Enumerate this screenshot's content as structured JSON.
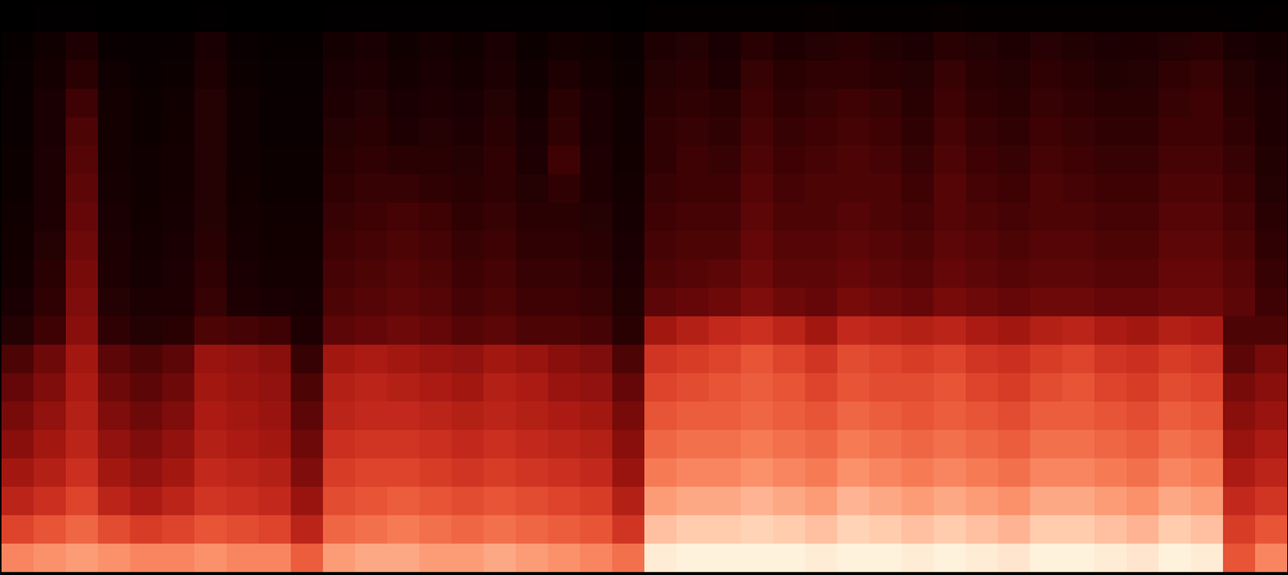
{
  "chart_data": {
    "type": "heatmap",
    "tick_labels": false,
    "cells": [
      [
        0.03,
        0.04,
        0.04,
        0.03,
        0.03,
        0.03,
        0.04,
        0.03,
        0.03,
        0.03,
        0.04,
        0.04,
        0.04,
        0.04,
        0.04,
        0.04,
        0.04,
        0.04,
        0.04,
        0.03,
        0.05,
        0.05,
        0.05,
        0.05,
        0.05,
        0.06,
        0.05,
        0.05,
        0.05,
        0.06,
        0.05,
        0.05,
        0.05,
        0.05,
        0.05,
        0.05,
        0.05,
        0.05,
        0.04,
        0.05
      ],
      [
        0.06,
        0.1,
        0.16,
        0.08,
        0.07,
        0.08,
        0.14,
        0.08,
        0.06,
        0.06,
        0.12,
        0.14,
        0.1,
        0.13,
        0.1,
        0.14,
        0.09,
        0.12,
        0.1,
        0.08,
        0.16,
        0.18,
        0.14,
        0.2,
        0.16,
        0.18,
        0.2,
        0.17,
        0.15,
        0.2,
        0.18,
        0.16,
        0.19,
        0.17,
        0.15,
        0.16,
        0.18,
        0.2,
        0.14,
        0.12
      ],
      [
        0.07,
        0.12,
        0.2,
        0.1,
        0.08,
        0.09,
        0.16,
        0.09,
        0.07,
        0.07,
        0.14,
        0.16,
        0.12,
        0.14,
        0.12,
        0.15,
        0.1,
        0.16,
        0.12,
        0.09,
        0.18,
        0.2,
        0.16,
        0.24,
        0.2,
        0.22,
        0.22,
        0.2,
        0.18,
        0.24,
        0.2,
        0.18,
        0.22,
        0.2,
        0.17,
        0.18,
        0.22,
        0.24,
        0.18,
        0.14
      ],
      [
        0.08,
        0.14,
        0.26,
        0.12,
        0.09,
        0.1,
        0.18,
        0.1,
        0.08,
        0.08,
        0.16,
        0.18,
        0.14,
        0.16,
        0.14,
        0.18,
        0.12,
        0.2,
        0.14,
        0.1,
        0.2,
        0.22,
        0.2,
        0.26,
        0.22,
        0.24,
        0.26,
        0.24,
        0.2,
        0.26,
        0.22,
        0.2,
        0.24,
        0.22,
        0.2,
        0.2,
        0.24,
        0.26,
        0.2,
        0.16
      ],
      [
        0.08,
        0.14,
        0.3,
        0.12,
        0.09,
        0.11,
        0.18,
        0.1,
        0.08,
        0.08,
        0.18,
        0.2,
        0.16,
        0.18,
        0.16,
        0.2,
        0.14,
        0.22,
        0.14,
        0.1,
        0.22,
        0.24,
        0.22,
        0.28,
        0.24,
        0.26,
        0.28,
        0.26,
        0.22,
        0.28,
        0.24,
        0.22,
        0.26,
        0.24,
        0.22,
        0.22,
        0.26,
        0.26,
        0.22,
        0.16
      ],
      [
        0.09,
        0.15,
        0.32,
        0.12,
        0.1,
        0.12,
        0.18,
        0.1,
        0.09,
        0.09,
        0.2,
        0.22,
        0.2,
        0.2,
        0.18,
        0.22,
        0.16,
        0.26,
        0.16,
        0.11,
        0.22,
        0.26,
        0.24,
        0.3,
        0.26,
        0.28,
        0.3,
        0.28,
        0.24,
        0.3,
        0.26,
        0.24,
        0.28,
        0.26,
        0.24,
        0.24,
        0.28,
        0.28,
        0.24,
        0.17
      ],
      [
        0.09,
        0.15,
        0.34,
        0.13,
        0.1,
        0.12,
        0.18,
        0.11,
        0.09,
        0.09,
        0.22,
        0.24,
        0.24,
        0.22,
        0.2,
        0.22,
        0.18,
        0.22,
        0.16,
        0.12,
        0.24,
        0.26,
        0.26,
        0.32,
        0.28,
        0.3,
        0.3,
        0.3,
        0.26,
        0.32,
        0.28,
        0.26,
        0.3,
        0.28,
        0.26,
        0.26,
        0.3,
        0.3,
        0.26,
        0.18
      ],
      [
        0.1,
        0.16,
        0.36,
        0.14,
        0.11,
        0.13,
        0.18,
        0.12,
        0.1,
        0.1,
        0.24,
        0.26,
        0.28,
        0.26,
        0.22,
        0.24,
        0.2,
        0.2,
        0.18,
        0.13,
        0.26,
        0.28,
        0.28,
        0.34,
        0.3,
        0.3,
        0.32,
        0.3,
        0.28,
        0.32,
        0.3,
        0.28,
        0.3,
        0.3,
        0.28,
        0.28,
        0.32,
        0.32,
        0.28,
        0.2
      ],
      [
        0.11,
        0.18,
        0.38,
        0.15,
        0.12,
        0.14,
        0.2,
        0.13,
        0.11,
        0.11,
        0.26,
        0.28,
        0.3,
        0.28,
        0.24,
        0.26,
        0.22,
        0.22,
        0.2,
        0.14,
        0.28,
        0.3,
        0.3,
        0.36,
        0.32,
        0.32,
        0.34,
        0.32,
        0.3,
        0.34,
        0.32,
        0.3,
        0.32,
        0.32,
        0.3,
        0.3,
        0.34,
        0.34,
        0.3,
        0.22
      ],
      [
        0.12,
        0.2,
        0.4,
        0.16,
        0.13,
        0.15,
        0.22,
        0.14,
        0.12,
        0.12,
        0.28,
        0.3,
        0.32,
        0.3,
        0.26,
        0.28,
        0.24,
        0.24,
        0.22,
        0.15,
        0.3,
        0.32,
        0.34,
        0.38,
        0.34,
        0.34,
        0.36,
        0.34,
        0.32,
        0.36,
        0.34,
        0.32,
        0.34,
        0.34,
        0.32,
        0.32,
        0.36,
        0.36,
        0.32,
        0.24
      ],
      [
        0.14,
        0.22,
        0.42,
        0.18,
        0.15,
        0.16,
        0.24,
        0.16,
        0.14,
        0.13,
        0.3,
        0.32,
        0.34,
        0.32,
        0.28,
        0.3,
        0.26,
        0.26,
        0.24,
        0.17,
        0.34,
        0.36,
        0.38,
        0.42,
        0.38,
        0.36,
        0.4,
        0.38,
        0.36,
        0.4,
        0.38,
        0.36,
        0.38,
        0.38,
        0.36,
        0.36,
        0.38,
        0.38,
        0.34,
        0.26
      ],
      [
        0.18,
        0.26,
        0.44,
        0.22,
        0.18,
        0.2,
        0.3,
        0.28,
        0.26,
        0.16,
        0.34,
        0.36,
        0.38,
        0.36,
        0.32,
        0.34,
        0.3,
        0.3,
        0.28,
        0.2,
        0.5,
        0.54,
        0.58,
        0.6,
        0.56,
        0.5,
        0.58,
        0.56,
        0.54,
        0.56,
        0.52,
        0.5,
        0.54,
        0.56,
        0.52,
        0.5,
        0.54,
        0.52,
        0.3,
        0.3
      ],
      [
        0.3,
        0.38,
        0.5,
        0.34,
        0.3,
        0.34,
        0.48,
        0.46,
        0.44,
        0.24,
        0.5,
        0.52,
        0.5,
        0.48,
        0.46,
        0.5,
        0.48,
        0.44,
        0.42,
        0.3,
        0.62,
        0.64,
        0.66,
        0.7,
        0.66,
        0.62,
        0.68,
        0.66,
        0.64,
        0.66,
        0.62,
        0.6,
        0.64,
        0.66,
        0.62,
        0.6,
        0.64,
        0.62,
        0.34,
        0.4
      ],
      [
        0.36,
        0.42,
        0.52,
        0.38,
        0.34,
        0.38,
        0.5,
        0.48,
        0.46,
        0.3,
        0.54,
        0.56,
        0.54,
        0.52,
        0.5,
        0.54,
        0.52,
        0.48,
        0.46,
        0.36,
        0.66,
        0.68,
        0.7,
        0.72,
        0.7,
        0.66,
        0.7,
        0.68,
        0.68,
        0.7,
        0.66,
        0.64,
        0.68,
        0.7,
        0.66,
        0.64,
        0.68,
        0.66,
        0.4,
        0.44
      ],
      [
        0.4,
        0.46,
        0.54,
        0.42,
        0.38,
        0.42,
        0.52,
        0.5,
        0.48,
        0.34,
        0.56,
        0.58,
        0.58,
        0.56,
        0.54,
        0.56,
        0.54,
        0.52,
        0.5,
        0.4,
        0.7,
        0.72,
        0.72,
        0.74,
        0.72,
        0.7,
        0.74,
        0.72,
        0.7,
        0.72,
        0.7,
        0.68,
        0.72,
        0.72,
        0.7,
        0.68,
        0.72,
        0.7,
        0.44,
        0.48
      ],
      [
        0.44,
        0.5,
        0.56,
        0.46,
        0.42,
        0.46,
        0.54,
        0.52,
        0.5,
        0.38,
        0.6,
        0.62,
        0.62,
        0.6,
        0.58,
        0.6,
        0.58,
        0.56,
        0.54,
        0.44,
        0.74,
        0.76,
        0.76,
        0.78,
        0.76,
        0.74,
        0.78,
        0.76,
        0.74,
        0.76,
        0.74,
        0.72,
        0.76,
        0.76,
        0.74,
        0.72,
        0.76,
        0.74,
        0.48,
        0.52
      ],
      [
        0.5,
        0.54,
        0.6,
        0.5,
        0.46,
        0.5,
        0.58,
        0.56,
        0.54,
        0.42,
        0.64,
        0.66,
        0.66,
        0.64,
        0.62,
        0.64,
        0.62,
        0.6,
        0.58,
        0.48,
        0.78,
        0.8,
        0.8,
        0.82,
        0.8,
        0.78,
        0.82,
        0.8,
        0.78,
        0.8,
        0.78,
        0.76,
        0.8,
        0.8,
        0.78,
        0.76,
        0.8,
        0.78,
        0.52,
        0.56
      ],
      [
        0.56,
        0.6,
        0.66,
        0.56,
        0.52,
        0.56,
        0.62,
        0.6,
        0.58,
        0.48,
        0.68,
        0.7,
        0.72,
        0.7,
        0.68,
        0.7,
        0.68,
        0.66,
        0.64,
        0.54,
        0.84,
        0.86,
        0.86,
        0.88,
        0.86,
        0.84,
        0.88,
        0.86,
        0.84,
        0.86,
        0.84,
        0.82,
        0.86,
        0.86,
        0.84,
        0.82,
        0.86,
        0.84,
        0.58,
        0.62
      ],
      [
        0.66,
        0.7,
        0.74,
        0.68,
        0.64,
        0.66,
        0.7,
        0.68,
        0.66,
        0.56,
        0.74,
        0.76,
        0.78,
        0.76,
        0.74,
        0.76,
        0.74,
        0.72,
        0.7,
        0.62,
        0.9,
        0.92,
        0.92,
        0.93,
        0.92,
        0.9,
        0.93,
        0.92,
        0.9,
        0.92,
        0.9,
        0.88,
        0.92,
        0.92,
        0.9,
        0.88,
        0.92,
        0.9,
        0.64,
        0.7
      ],
      [
        0.8,
        0.82,
        0.84,
        0.82,
        0.8,
        0.8,
        0.82,
        0.8,
        0.8,
        0.72,
        0.84,
        0.86,
        0.86,
        0.84,
        0.84,
        0.86,
        0.84,
        0.82,
        0.8,
        0.76,
        0.97,
        0.98,
        0.98,
        0.98,
        0.98,
        0.97,
        0.98,
        0.98,
        0.97,
        0.98,
        0.97,
        0.96,
        0.98,
        0.98,
        0.97,
        0.96,
        0.98,
        0.97,
        0.7,
        0.8
      ]
    ]
  }
}
